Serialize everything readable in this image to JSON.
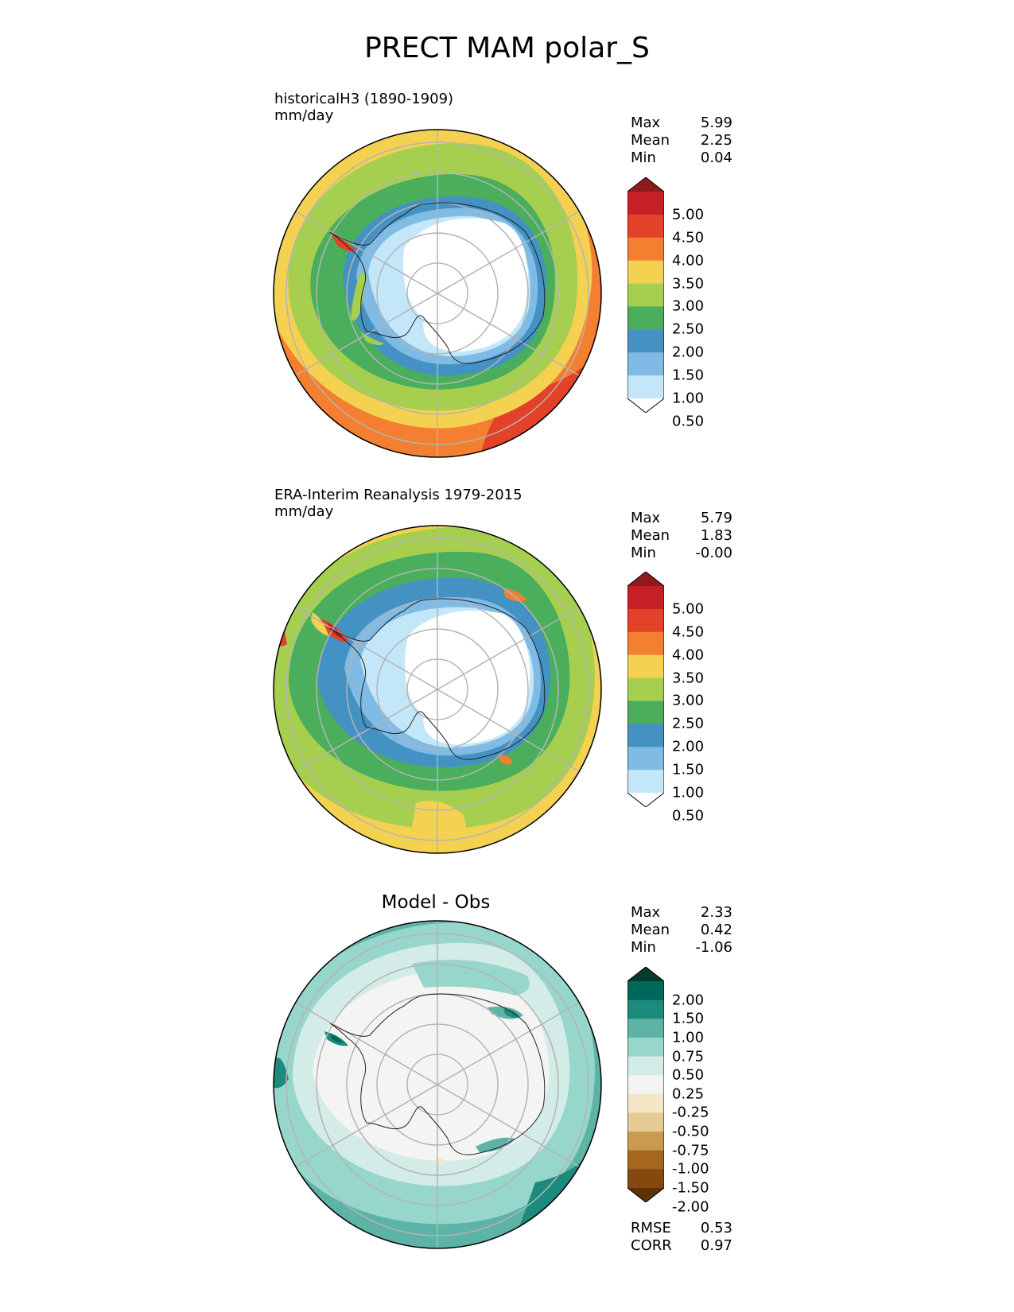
{
  "title": "PRECT MAM polar_S",
  "panels": [
    {
      "label": "historicalH3 (1890-1909)",
      "units": "mm/day",
      "stats": [
        {
          "label": "Max",
          "value": "5.99"
        },
        {
          "label": "Mean",
          "value": "2.25"
        },
        {
          "label": "Min",
          "value": "0.04"
        }
      ],
      "colorbar": {
        "ticks": [
          "5.00",
          "4.50",
          "4.00",
          "3.50",
          "3.00",
          "2.50",
          "2.00",
          "1.50",
          "1.00",
          "0.50"
        ],
        "colors": [
          "#8f1a1e",
          "#c62026",
          "#e34128",
          "#f47f30",
          "#f5d152",
          "#a6cf4f",
          "#4aae5c",
          "#4491c3",
          "#7fbbe4",
          "#c3e7f9",
          "#ffffff"
        ]
      }
    },
    {
      "label": "ERA-Interim Reanalysis 1979-2015",
      "units": "mm/day",
      "stats": [
        {
          "label": "Max",
          "value": "5.79"
        },
        {
          "label": "Mean",
          "value": "1.83"
        },
        {
          "label": "Min",
          "value": "-0.00"
        }
      ],
      "colorbar": {
        "ticks": [
          "5.00",
          "4.50",
          "4.00",
          "3.50",
          "3.00",
          "2.50",
          "2.00",
          "1.50",
          "1.00",
          "0.50"
        ],
        "colors": [
          "#8f1a1e",
          "#c62026",
          "#e34128",
          "#f47f30",
          "#f5d152",
          "#a6cf4f",
          "#4aae5c",
          "#4491c3",
          "#7fbbe4",
          "#c3e7f9",
          "#ffffff"
        ]
      }
    },
    {
      "label": "Model - Obs",
      "units": "",
      "stats": [
        {
          "label": "Max",
          "value": "2.33"
        },
        {
          "label": "Mean",
          "value": "0.42"
        },
        {
          "label": "Min",
          "value": "-1.06"
        }
      ],
      "colorbar": {
        "ticks": [
          "2.00",
          "1.50",
          "1.00",
          "0.75",
          "0.50",
          "0.25",
          "-0.25",
          "-0.50",
          "-0.75",
          "-1.00",
          "-1.50",
          "-2.00"
        ],
        "colors": [
          "#023a2e",
          "#00675b",
          "#1d8a7e",
          "#5cb3a6",
          "#97d6ca",
          "#d3ece7",
          "#f4f4f2",
          "#f5e6c6",
          "#e6cc94",
          "#c99a52",
          "#a6661d",
          "#844810",
          "#5b3306"
        ]
      },
      "metrics": [
        {
          "label": "RMSE",
          "value": "0.53"
        },
        {
          "label": "CORR",
          "value": "0.97"
        }
      ]
    }
  ]
}
